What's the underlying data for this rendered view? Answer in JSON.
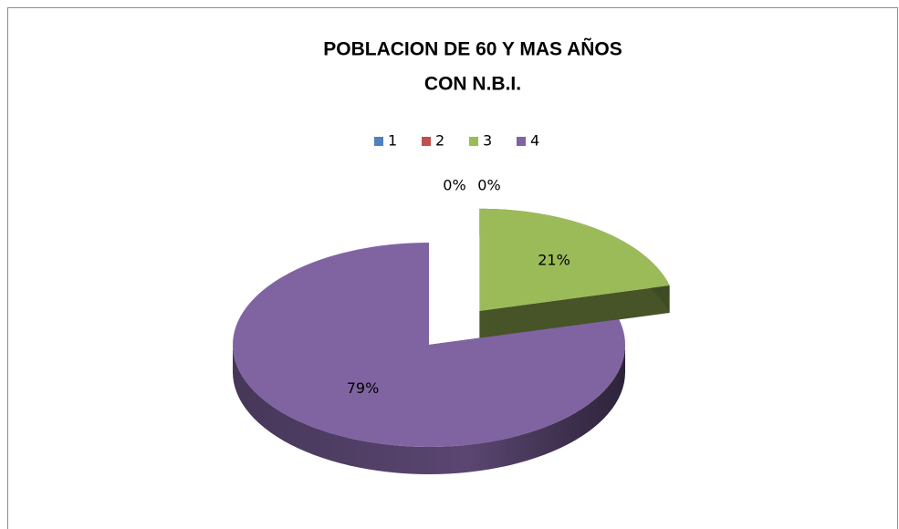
{
  "chart_data": {
    "type": "pie",
    "title": [
      "POBLACION DE 60 Y MAS AÑOS",
      "CON N.B.I."
    ],
    "categories": [
      "1",
      "2",
      "3",
      "4"
    ],
    "values": [
      0,
      0,
      21,
      79
    ],
    "value_labels": [
      "0%",
      "0%",
      "21%",
      "79%"
    ],
    "colors": [
      "#4f81bd",
      "#c0504d",
      "#9bbb59",
      "#8064a2"
    ],
    "legend": "top"
  }
}
